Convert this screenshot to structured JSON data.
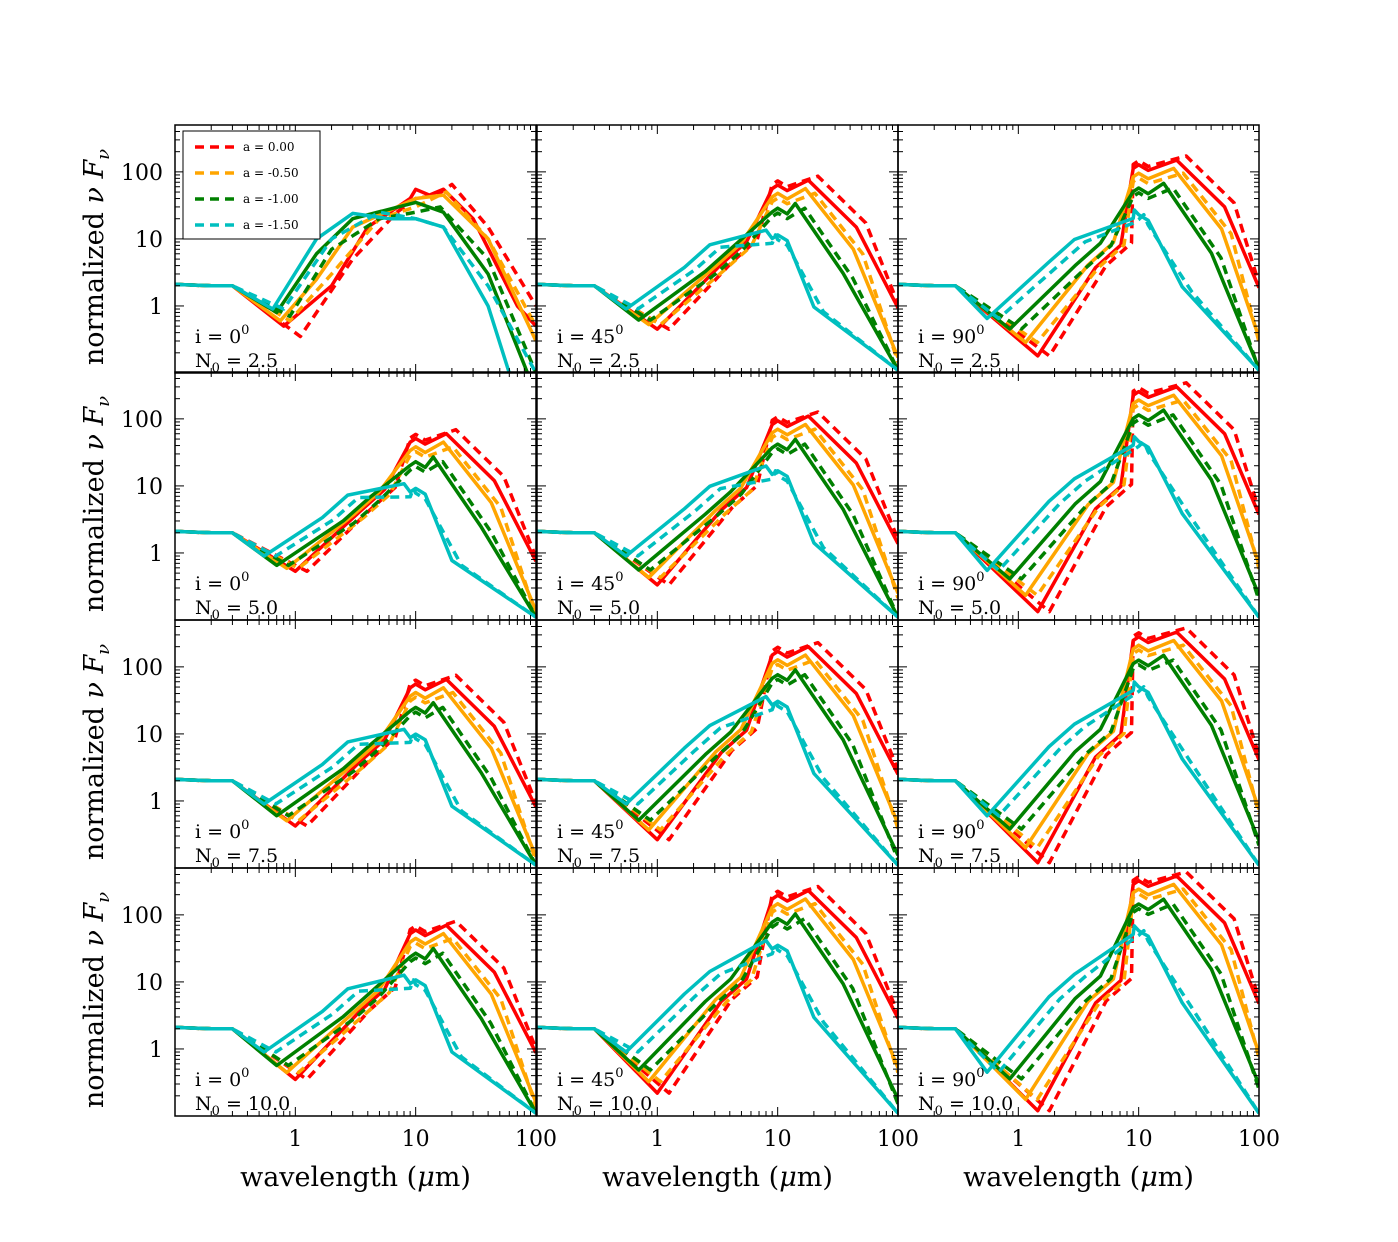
{
  "chart_data": {
    "type": "line",
    "layout": "4 rows x 3 columns grid of log-log SED panels",
    "xlabel": "wavelength (μm)",
    "ylabel": "normalized νFν",
    "xscale": "log",
    "yscale": "log",
    "xlim": [
      0.1,
      100
    ],
    "ylim": [
      0.1,
      500
    ],
    "xticks": [
      {
        "value": 1,
        "label": "1"
      },
      {
        "value": 10,
        "label": "10"
      },
      {
        "value": 100,
        "label": "100"
      }
    ],
    "yticks": [
      {
        "value": 1,
        "label": "1"
      },
      {
        "value": 10,
        "label": "10"
      },
      {
        "value": 100,
        "label": "100"
      }
    ],
    "legend": {
      "location": "top-left of first panel",
      "entries": [
        {
          "label": "a = 0.00",
          "color": "#ff0000",
          "style": "dashed"
        },
        {
          "label": "a = -0.50",
          "color": "#ffa500",
          "style": "dashed"
        },
        {
          "label": "a = -1.00",
          "color": "#008000",
          "style": "dashed"
        },
        {
          "label": "a = -1.50",
          "color": "#00bfbf",
          "style": "dashed"
        }
      ]
    },
    "series_colors": {
      "a0": "#ff0000",
      "a05": "#ffa500",
      "a10": "#008000",
      "a15": "#00bfbf"
    },
    "note": "Each panel has a solid and a dashed curve per a-value; key points listed as [wavelength_um, nuFnu].",
    "panels": [
      {
        "inclination": "i = 0",
        "inclination_sup": "0",
        "n0": "N",
        "n0_sub": "0",
        "n0_value": " = 2.5",
        "label_i": "i = 0",
        "label_n": "N0 = 2.5",
        "curves": {
          "a0": {
            "solid": [
              [
                0.8,
                0.5
              ],
              [
                2,
                2
              ],
              [
                4,
                15
              ],
              [
                9,
                40
              ],
              [
                10,
                55
              ],
              [
                13,
                45
              ],
              [
                17,
                55
              ],
              [
                30,
                20
              ],
              [
                70,
                1
              ],
              [
                100,
                0.5
              ]
            ],
            "dashed": [
              [
                1.1,
                0.35
              ],
              [
                3,
                5
              ],
              [
                7,
                25
              ],
              [
                10,
                40
              ],
              [
                15,
                45
              ],
              [
                20,
                65
              ],
              [
                40,
                15
              ],
              [
                100,
                1
              ]
            ]
          },
          "a05": {
            "solid": [
              [
                0.75,
                0.6
              ],
              [
                1.5,
                2.5
              ],
              [
                3,
                15
              ],
              [
                10,
                40
              ],
              [
                17,
                45
              ],
              [
                40,
                10
              ],
              [
                100,
                0.3
              ]
            ],
            "dashed": [
              [
                0.9,
                0.6
              ],
              [
                2,
                3
              ],
              [
                5,
                20
              ],
              [
                10,
                30
              ],
              [
                18,
                50
              ],
              [
                40,
                10
              ],
              [
                100,
                0.5
              ]
            ]
          },
          "a10": {
            "solid": [
              [
                0.7,
                0.8
              ],
              [
                1.5,
                6
              ],
              [
                3,
                20
              ],
              [
                10,
                35
              ],
              [
                17,
                25
              ],
              [
                40,
                3
              ],
              [
                85,
                0.1
              ]
            ],
            "dashed": [
              [
                0.9,
                0.7
              ],
              [
                2,
                7
              ],
              [
                5,
                20
              ],
              [
                10,
                25
              ],
              [
                16,
                30
              ],
              [
                40,
                5
              ],
              [
                100,
                0.1
              ]
            ]
          },
          "a15": {
            "solid": [
              [
                0.65,
                0.9
              ],
              [
                1.5,
                10
              ],
              [
                3,
                24
              ],
              [
                6,
                20
              ],
              [
                10,
                20
              ],
              [
                17,
                15
              ],
              [
                40,
                1
              ],
              [
                60,
                0.1
              ]
            ],
            "dashed": [
              [
                0.8,
                0.9
              ],
              [
                2,
                10
              ],
              [
                5,
                25
              ],
              [
                10,
                20
              ],
              [
                17,
                15
              ],
              [
                40,
                2
              ],
              [
                100,
                0.1
              ]
            ]
          }
        }
      },
      {
        "label_i": "i = 45",
        "label_n": "N0 = 2.5",
        "curves": {}
      },
      {
        "label_i": "i = 90",
        "label_n": "N0 = 2.5",
        "curves": {}
      },
      {
        "label_i": "i = 0",
        "label_n": "N0 = 5.0",
        "curves": {}
      },
      {
        "label_i": "i = 45",
        "label_n": "N0 = 5.0",
        "curves": {}
      },
      {
        "label_i": "i = 90",
        "label_n": "N0 = 5.0",
        "curves": {}
      },
      {
        "label_i": "i = 0",
        "label_n": "N0 = 7.5",
        "curves": {}
      },
      {
        "label_i": "i = 45",
        "label_n": "N0 = 7.5",
        "curves": {}
      },
      {
        "label_i": "i = 90",
        "label_n": "N0 = 7.5",
        "curves": {}
      },
      {
        "label_i": "i = 0",
        "label_n": "N0 = 10.0",
        "curves": {}
      },
      {
        "label_i": "i = 45",
        "label_n": "N0 = 10.0",
        "curves": {}
      },
      {
        "label_i": "i = 90",
        "label_n": "N0 = 10.0",
        "curves": {}
      }
    ]
  },
  "panel_labels": [
    {
      "i_base": "i = 0",
      "i_sup": "0",
      "n_base": "N",
      "n_sub": "0",
      "n_val": " = 2.5"
    },
    {
      "i_base": "i = 45",
      "i_sup": "0",
      "n_base": "N",
      "n_sub": "0",
      "n_val": " = 2.5"
    },
    {
      "i_base": "i = 90",
      "i_sup": "0",
      "n_base": "N",
      "n_sub": "0",
      "n_val": " = 2.5"
    },
    {
      "i_base": "i = 0",
      "i_sup": "0",
      "n_base": "N",
      "n_sub": "0",
      "n_val": " = 5.0"
    },
    {
      "i_base": "i = 45",
      "i_sup": "0",
      "n_base": "N",
      "n_sub": "0",
      "n_val": " = 5.0"
    },
    {
      "i_base": "i = 90",
      "i_sup": "0",
      "n_base": "N",
      "n_sub": "0",
      "n_val": " = 5.0"
    },
    {
      "i_base": "i = 0",
      "i_sup": "0",
      "n_base": "N",
      "n_sub": "0",
      "n_val": " = 7.5"
    },
    {
      "i_base": "i = 45",
      "i_sup": "0",
      "n_base": "N",
      "n_sub": "0",
      "n_val": " = 7.5"
    },
    {
      "i_base": "i = 90",
      "i_sup": "0",
      "n_base": "N",
      "n_sub": "0",
      "n_val": " = 7.5"
    },
    {
      "i_base": "i = 0",
      "i_sup": "0",
      "n_base": "N",
      "n_sub": "0",
      "n_val": " = 10.0"
    },
    {
      "i_base": "i = 45",
      "i_sup": "0",
      "n_base": "N",
      "n_sub": "0",
      "n_val": " = 10.0"
    },
    {
      "i_base": "i = 90",
      "i_sup": "0",
      "n_base": "N",
      "n_sub": "0",
      "n_val": " = 10.0"
    }
  ],
  "ylabel_text": {
    "prefix": "normalized ",
    "nu": "ν",
    "F": "F",
    "sub": "ν"
  },
  "xlabel_text": {
    "prefix": "wavelength (",
    "mu": "μ",
    "suffix": "m)"
  }
}
